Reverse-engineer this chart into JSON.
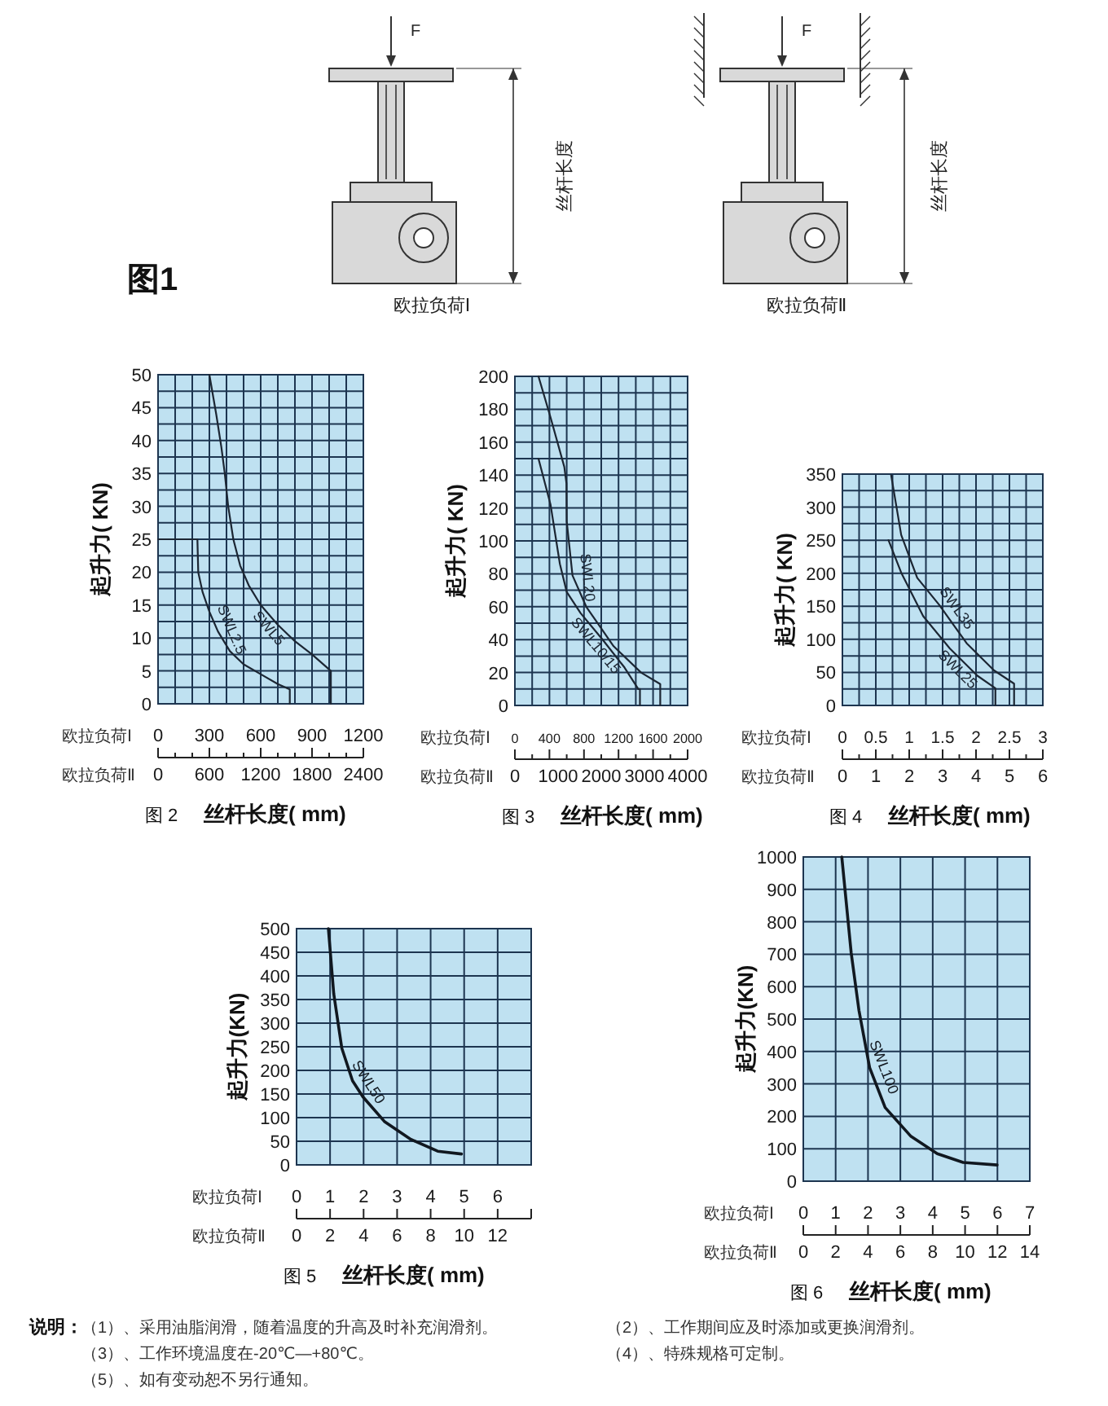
{
  "chart_data": [
    {
      "type": "other",
      "title": "图1",
      "annotations": [
        "F",
        "丝杆长度",
        "欧拉负荷Ⅰ",
        "F",
        "丝杆长度",
        "欧拉负荷Ⅱ"
      ]
    },
    {
      "type": "line",
      "title": "图 2",
      "xlabel": "丝杆长度( mm)",
      "ylabel": "起升力( KN)",
      "annotations": [
        "欧拉负荷Ⅰ",
        "欧拉负荷Ⅱ"
      ],
      "grid": true,
      "xlim": [
        0,
        1200
      ],
      "xticks": [
        0,
        {
          "value": 100,
          "label": null
        },
        {
          "value": 200,
          "label": null
        },
        300,
        {
          "value": 400,
          "label": null
        },
        {
          "value": 500,
          "label": null
        },
        600,
        {
          "value": 700,
          "label": null
        },
        {
          "value": 800,
          "label": null
        },
        900,
        {
          "value": 1000,
          "label": null
        },
        {
          "value": 1100,
          "label": null
        },
        1200
      ],
      "x2lim": [
        0,
        2400
      ],
      "x2ticks": [
        0,
        600,
        1200,
        1800,
        2400
      ],
      "ylim": [
        0,
        50
      ],
      "yticks": [
        0,
        {
          "value": 2.5,
          "label": null
        },
        5,
        {
          "value": 7.5,
          "label": null
        },
        10,
        {
          "value": 12.5,
          "label": null
        },
        15,
        {
          "value": 17.5,
          "label": null
        },
        20,
        {
          "value": 22.5,
          "label": null
        },
        25,
        {
          "value": 27.5,
          "label": null
        },
        30,
        {
          "value": 32.5,
          "label": null
        },
        35,
        {
          "value": 37.5,
          "label": null
        },
        40,
        {
          "value": 42.5,
          "label": null
        },
        45,
        {
          "value": 47.5,
          "label": null
        },
        50
      ],
      "series": [
        {
          "name": "SWL2.5",
          "color": "#1c2633",
          "x": [
            0,
            230,
            235,
            260,
            300,
            350,
            420,
            500,
            600,
            700,
            770,
            770
          ],
          "values": [
            25,
            25,
            20,
            17,
            14,
            11,
            8,
            6,
            4.5,
            3,
            2.2,
            0
          ]
        },
        {
          "name": "SWL5",
          "color": "#1c2633",
          "x": [
            300,
            340,
            370,
            390,
            410,
            440,
            480,
            530,
            600,
            700,
            800,
            900,
            1010,
            1010
          ],
          "values": [
            50,
            44,
            39,
            35,
            30,
            25,
            21,
            18,
            15,
            12,
            9.5,
            7.5,
            5,
            0
          ]
        }
      ]
    },
    {
      "type": "line",
      "title": "图 3",
      "xlabel": "丝杆长度( mm)",
      "ylabel": "起升力( KN)",
      "annotations": [
        "欧拉负荷Ⅰ",
        "欧拉负荷Ⅱ"
      ],
      "grid": true,
      "xlim": [
        0,
        2000
      ],
      "xticks": [
        0,
        {
          "value": 200,
          "label": null
        },
        400,
        {
          "value": 600,
          "label": null
        },
        800,
        {
          "value": 1000,
          "label": null
        },
        1200,
        {
          "value": 1400,
          "label": null
        },
        1600,
        {
          "value": 1800,
          "label": null
        },
        2000
      ],
      "x2lim": [
        0,
        4000
      ],
      "x2ticks": [
        0,
        1000,
        2000,
        3000,
        4000
      ],
      "ylim": [
        0,
        200
      ],
      "yticks": [
        0,
        {
          "value": 10,
          "label": null
        },
        20,
        {
          "value": 30,
          "label": null
        },
        40,
        {
          "value": 50,
          "label": null
        },
        60,
        {
          "value": 70,
          "label": null
        },
        80,
        {
          "value": 90,
          "label": null
        },
        100,
        {
          "value": 110,
          "label": null
        },
        120,
        {
          "value": 130,
          "label": null
        },
        140,
        {
          "value": 150,
          "label": null
        },
        160,
        {
          "value": 170,
          "label": null
        },
        180,
        {
          "value": 190,
          "label": null
        },
        200
      ],
      "series": [
        {
          "name": "SWL20",
          "color": "#1c2633",
          "x": [
            273,
            413,
            572,
            597,
            600,
            667,
            826,
            1143,
            1461,
            1683,
            1683
          ],
          "values": [
            200,
            175,
            145,
            135,
            112,
            79,
            60,
            36,
            20,
            13,
            0
          ]
        },
        {
          "name": "SWL10/15",
          "color": "#1c2633",
          "x": [
            273,
            413,
            521,
            600,
            762,
            1016,
            1270,
            1429,
            1448,
            1448
          ],
          "values": [
            150,
            122,
            86,
            69,
            56,
            40,
            23,
            10,
            10,
            0
          ]
        }
      ]
    },
    {
      "type": "line",
      "title": "图 4",
      "xlabel": "丝杆长度( mm)",
      "ylabel": "起升力( KN)",
      "annotations": [
        "欧拉负荷Ⅰ",
        "欧拉负荷Ⅱ"
      ],
      "grid": true,
      "xlim": [
        0,
        3
      ],
      "xticks": [
        0,
        {
          "value": 0.25,
          "label": null
        },
        0.5,
        {
          "value": 0.75,
          "label": null
        },
        1,
        {
          "value": 1.25,
          "label": null
        },
        1.5,
        {
          "value": 1.75,
          "label": null
        },
        2,
        {
          "value": 2.25,
          "label": null
        },
        2.5,
        {
          "value": 2.75,
          "label": null
        },
        3
      ],
      "x2lim": [
        0,
        6
      ],
      "x2ticks": [
        0,
        1,
        2,
        3,
        4,
        5,
        6
      ],
      "ylim": [
        0,
        350
      ],
      "yticks": [
        0,
        {
          "value": 25,
          "label": null
        },
        50,
        {
          "value": 75,
          "label": null
        },
        100,
        {
          "value": 125,
          "label": null
        },
        150,
        {
          "value": 175,
          "label": null
        },
        200,
        {
          "value": 225,
          "label": null
        },
        250,
        {
          "value": 275,
          "label": null
        },
        300,
        {
          "value": 325,
          "label": null
        },
        350
      ],
      "series": [
        {
          "name": "SWL35",
          "color": "#1c2633",
          "x": [
            0.73,
            0.88,
            1.12,
            1.45,
            1.86,
            2.27,
            2.57,
            2.57
          ],
          "values": [
            348,
            258,
            193,
            152,
            94,
            53,
            33,
            0
          ]
        },
        {
          "name": "SWL25",
          "color": "#1c2633",
          "x": [
            0.69,
            0.88,
            1.21,
            1.61,
            2.02,
            2.29,
            2.29
          ],
          "values": [
            250,
            201,
            135,
            86,
            45,
            26,
            0
          ]
        }
      ]
    },
    {
      "type": "line",
      "title": "图 5",
      "xlabel": "丝杆长度( mm)",
      "ylabel": "起升力(KN)",
      "annotations": [
        "欧拉负荷Ⅰ",
        "欧拉负荷Ⅱ"
      ],
      "grid": true,
      "xlim": [
        0,
        7
      ],
      "xticks": [
        0,
        1,
        2,
        3,
        4,
        5,
        6,
        {
          "value": 7,
          "label": null
        }
      ],
      "x2lim": [
        0,
        14
      ],
      "x2ticks": [
        0,
        2,
        4,
        6,
        8,
        10,
        12
      ],
      "ylim": [
        0,
        500
      ],
      "yticks": [
        0,
        50,
        100,
        150,
        200,
        250,
        300,
        350,
        400,
        450,
        500
      ],
      "series": [
        {
          "name": "SWL50",
          "color": "#111820",
          "x": [
            0.95,
            1.11,
            1.35,
            1.67,
            1.98,
            2.62,
            3.41,
            4.21,
            4.92
          ],
          "values": [
            500,
            362,
            247,
            178,
            144,
            92,
            54,
            29,
            23
          ]
        }
      ]
    },
    {
      "type": "line",
      "title": "图 6",
      "xlabel": "丝杆长度( mm)",
      "ylabel": "起升力(KN)",
      "annotations": [
        "欧拉负荷Ⅰ",
        "欧拉负荷Ⅱ"
      ],
      "grid": true,
      "xlim": [
        0,
        7
      ],
      "xticks": [
        0,
        1,
        2,
        3,
        4,
        5,
        6,
        7
      ],
      "x2lim": [
        0,
        14
      ],
      "x2ticks": [
        0,
        2,
        4,
        6,
        8,
        10,
        12,
        14
      ],
      "ylim": [
        0,
        1000
      ],
      "yticks": [
        0,
        100,
        200,
        300,
        400,
        500,
        600,
        700,
        800,
        900,
        1000
      ],
      "series": [
        {
          "name": "SWL100",
          "color": "#111820",
          "x": [
            1.19,
            1.48,
            1.72,
            2.05,
            2.53,
            3.33,
            4.14,
            4.94,
            5.99
          ],
          "values": [
            1000,
            704,
            527,
            350,
            227,
            138,
            85,
            58,
            50
          ]
        }
      ]
    },
    {
      "type": "other",
      "title": "说明：",
      "annotations": [
        "（1）、采用油脂润滑，随着温度的升高及时补充润滑剂。",
        "（2）、工作期间应及时添加或更换润滑剂。",
        "（3）、工作环境温度在-20℃—+80℃。",
        "（4）、特殊规格可定制。",
        "（5）、如有变动恕不另行通知。"
      ]
    }
  ]
}
